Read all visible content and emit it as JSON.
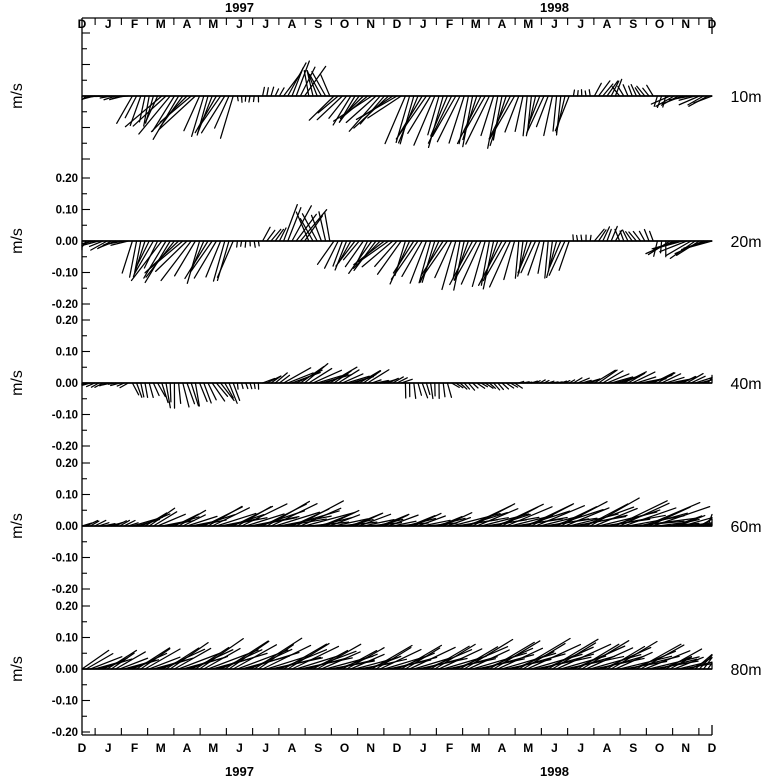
{
  "chart_data": {
    "type": "stick-plot",
    "x_axis": {
      "months": [
        "D",
        "J",
        "F",
        "M",
        "A",
        "M",
        "J",
        "J",
        "A",
        "S",
        "O",
        "N",
        "D",
        "J",
        "F",
        "M",
        "A",
        "M",
        "J",
        "J",
        "A",
        "S",
        "O",
        "N",
        "D"
      ],
      "years": [
        {
          "label": "1997",
          "month_index": 6
        },
        {
          "label": "1998",
          "month_index": 18
        }
      ]
    },
    "units": "m/s",
    "ylim": [
      -0.2,
      0.2
    ],
    "y_ticks": [
      "0.20",
      "0.10",
      "0.00",
      "-0.10",
      "-0.20"
    ],
    "panels": [
      {
        "depth": "10m",
        "show_tick_labels": false,
        "segments": [
          {
            "range": [
              0.0,
              1.9
            ],
            "amp": 0.04,
            "angle": -170
          },
          {
            "range": [
              1.9,
              2.9
            ],
            "amp": 0.1,
            "angle": -110
          },
          {
            "range": [
              2.9,
              4.4
            ],
            "amp": 0.16,
            "angle": -130
          },
          {
            "range": [
              4.4,
              5.9
            ],
            "amp": 0.14,
            "angle": -115
          },
          {
            "range": [
              5.9,
              6.8
            ],
            "amp": 0.02,
            "angle": -90
          },
          {
            "range": [
              6.8,
              7.6
            ],
            "amp": 0.03,
            "angle": 70
          },
          {
            "range": [
              7.6,
              8.5
            ],
            "amp": 0.12,
            "angle": 60
          },
          {
            "range": [
              8.5,
              9.6
            ],
            "amp": 0.09,
            "angle": 110
          },
          {
            "range": [
              9.6,
              11.0
            ],
            "amp": 0.11,
            "angle": -130
          },
          {
            "range": [
              11.0,
              12.2
            ],
            "amp": 0.15,
            "angle": -140
          },
          {
            "range": [
              12.2,
              14.0
            ],
            "amp": 0.17,
            "angle": -115
          },
          {
            "range": [
              14.0,
              16.5
            ],
            "amp": 0.17,
            "angle": -110
          },
          {
            "range": [
              16.5,
              18.6
            ],
            "amp": 0.13,
            "angle": -105
          },
          {
            "range": [
              18.6,
              19.4
            ],
            "amp": 0.02,
            "angle": 90
          },
          {
            "range": [
              19.4,
              20.4
            ],
            "amp": 0.06,
            "angle": 60
          },
          {
            "range": [
              20.4,
              21.8
            ],
            "amp": 0.04,
            "angle": 120
          },
          {
            "range": [
              21.8,
              22.3
            ],
            "amp": 0.04,
            "angle": -100
          },
          {
            "range": [
              22.3,
              24.0
            ],
            "amp": 0.07,
            "angle": -160
          }
        ]
      },
      {
        "depth": "20m",
        "show_tick_labels": true,
        "segments": [
          {
            "range": [
              0.0,
              1.9
            ],
            "amp": 0.06,
            "angle": -160
          },
          {
            "range": [
              1.9,
              2.9
            ],
            "amp": 0.12,
            "angle": -110
          },
          {
            "range": [
              2.9,
              4.4
            ],
            "amp": 0.16,
            "angle": -130
          },
          {
            "range": [
              4.4,
              5.9
            ],
            "amp": 0.14,
            "angle": -115
          },
          {
            "range": [
              5.9,
              6.8
            ],
            "amp": 0.02,
            "angle": -90
          },
          {
            "range": [
              6.8,
              7.6
            ],
            "amp": 0.05,
            "angle": 60
          },
          {
            "range": [
              7.6,
              8.5
            ],
            "amp": 0.13,
            "angle": 60
          },
          {
            "range": [
              8.5,
              9.6
            ],
            "amp": 0.1,
            "angle": 110
          },
          {
            "range": [
              9.6,
              11.0
            ],
            "amp": 0.1,
            "angle": -120
          },
          {
            "range": [
              11.0,
              12.2
            ],
            "amp": 0.13,
            "angle": -135
          },
          {
            "range": [
              12.2,
              14.0
            ],
            "amp": 0.15,
            "angle": -115
          },
          {
            "range": [
              14.0,
              16.5
            ],
            "amp": 0.16,
            "angle": -110
          },
          {
            "range": [
              16.5,
              18.6
            ],
            "amp": 0.12,
            "angle": -105
          },
          {
            "range": [
              18.6,
              19.4
            ],
            "amp": 0.02,
            "angle": 90
          },
          {
            "range": [
              19.4,
              20.4
            ],
            "amp": 0.05,
            "angle": 60
          },
          {
            "range": [
              20.4,
              21.8
            ],
            "amp": 0.04,
            "angle": 120
          },
          {
            "range": [
              21.8,
              22.3
            ],
            "amp": 0.05,
            "angle": -100
          },
          {
            "range": [
              22.3,
              24.0
            ],
            "amp": 0.1,
            "angle": -155
          }
        ]
      },
      {
        "depth": "40m",
        "show_tick_labels": true,
        "segments": [
          {
            "range": [
              0.0,
              1.9
            ],
            "amp": 0.03,
            "angle": -160
          },
          {
            "range": [
              1.9,
              2.9
            ],
            "amp": 0.05,
            "angle": -70
          },
          {
            "range": [
              2.9,
              4.4
            ],
            "amp": 0.08,
            "angle": -80
          },
          {
            "range": [
              4.4,
              5.9
            ],
            "amp": 0.07,
            "angle": -60
          },
          {
            "range": [
              5.9,
              6.8
            ],
            "amp": 0.02,
            "angle": -80
          },
          {
            "range": [
              6.8,
              7.6
            ],
            "amp": 0.05,
            "angle": 30
          },
          {
            "range": [
              7.6,
              8.5
            ],
            "amp": 0.1,
            "angle": 30
          },
          {
            "range": [
              8.5,
              9.6
            ],
            "amp": 0.1,
            "angle": 25
          },
          {
            "range": [
              9.6,
              11.0
            ],
            "amp": 0.08,
            "angle": 25
          },
          {
            "range": [
              11.0,
              12.2
            ],
            "amp": 0.04,
            "angle": 20
          },
          {
            "range": [
              12.2,
              14.0
            ],
            "amp": 0.05,
            "angle": -80
          },
          {
            "range": [
              14.0,
              16.5
            ],
            "amp": 0.03,
            "angle": -40
          },
          {
            "range": [
              16.5,
              18.6
            ],
            "amp": 0.02,
            "angle": 20
          },
          {
            "range": [
              18.6,
              19.4
            ],
            "amp": 0.04,
            "angle": 25
          },
          {
            "range": [
              19.4,
              20.4
            ],
            "amp": 0.08,
            "angle": 25
          },
          {
            "range": [
              20.4,
              21.8
            ],
            "amp": 0.08,
            "angle": 20
          },
          {
            "range": [
              21.8,
              22.3
            ],
            "amp": 0.07,
            "angle": 20
          },
          {
            "range": [
              22.3,
              24.0
            ],
            "amp": 0.06,
            "angle": 20
          }
        ]
      },
      {
        "depth": "60m",
        "show_tick_labels": true,
        "segments": [
          {
            "range": [
              0.0,
              1.9
            ],
            "amp": 0.04,
            "angle": 20
          },
          {
            "range": [
              1.9,
              2.9
            ],
            "amp": 0.1,
            "angle": 25
          },
          {
            "range": [
              2.9,
              4.4
            ],
            "amp": 0.1,
            "angle": 20
          },
          {
            "range": [
              4.4,
              5.9
            ],
            "amp": 0.14,
            "angle": 20
          },
          {
            "range": [
              5.9,
              6.8
            ],
            "amp": 0.16,
            "angle": 20
          },
          {
            "range": [
              6.8,
              7.6
            ],
            "amp": 0.17,
            "angle": 20
          },
          {
            "range": [
              7.6,
              8.5
            ],
            "amp": 0.17,
            "angle": 18
          },
          {
            "range": [
              8.5,
              9.6
            ],
            "amp": 0.12,
            "angle": 15
          },
          {
            "range": [
              9.6,
              11.0
            ],
            "amp": 0.11,
            "angle": 15
          },
          {
            "range": [
              11.0,
              12.2
            ],
            "amp": 0.1,
            "angle": 15
          },
          {
            "range": [
              12.2,
              14.0
            ],
            "amp": 0.1,
            "angle": 15
          },
          {
            "range": [
              14.0,
              16.5
            ],
            "amp": 0.16,
            "angle": 18
          },
          {
            "range": [
              16.5,
              18.6
            ],
            "amp": 0.17,
            "angle": 18
          },
          {
            "range": [
              18.6,
              19.4
            ],
            "amp": 0.18,
            "angle": 20
          },
          {
            "range": [
              19.4,
              20.4
            ],
            "amp": 0.19,
            "angle": 18
          },
          {
            "range": [
              20.4,
              21.8
            ],
            "amp": 0.19,
            "angle": 15
          },
          {
            "range": [
              21.8,
              22.3
            ],
            "amp": 0.12,
            "angle": 12
          },
          {
            "range": [
              22.3,
              24.0
            ],
            "amp": 0.1,
            "angle": 12
          }
        ]
      },
      {
        "depth": "80m",
        "show_tick_labels": true,
        "segments": [
          {
            "range": [
              0.0,
              1.9
            ],
            "amp": 0.11,
            "angle": 25
          },
          {
            "range": [
              1.9,
              2.9
            ],
            "amp": 0.13,
            "angle": 25
          },
          {
            "range": [
              2.9,
              4.4
            ],
            "amp": 0.15,
            "angle": 25
          },
          {
            "range": [
              4.4,
              5.9
            ],
            "amp": 0.17,
            "angle": 25
          },
          {
            "range": [
              5.9,
              6.8
            ],
            "amp": 0.18,
            "angle": 25
          },
          {
            "range": [
              6.8,
              7.6
            ],
            "amp": 0.17,
            "angle": 22
          },
          {
            "range": [
              7.6,
              8.5
            ],
            "amp": 0.17,
            "angle": 22
          },
          {
            "range": [
              8.5,
              9.6
            ],
            "amp": 0.16,
            "angle": 20
          },
          {
            "range": [
              9.6,
              11.0
            ],
            "amp": 0.14,
            "angle": 20
          },
          {
            "range": [
              11.0,
              12.2
            ],
            "amp": 0.15,
            "angle": 22
          },
          {
            "range": [
              12.2,
              14.0
            ],
            "amp": 0.16,
            "angle": 22
          },
          {
            "range": [
              14.0,
              16.5
            ],
            "amp": 0.18,
            "angle": 22
          },
          {
            "range": [
              16.5,
              18.6
            ],
            "amp": 0.19,
            "angle": 22
          },
          {
            "range": [
              18.6,
              19.4
            ],
            "amp": 0.18,
            "angle": 22
          },
          {
            "range": [
              19.4,
              20.4
            ],
            "amp": 0.17,
            "angle": 22
          },
          {
            "range": [
              20.4,
              21.8
            ],
            "amp": 0.17,
            "angle": 20
          },
          {
            "range": [
              21.8,
              22.3
            ],
            "amp": 0.13,
            "angle": 20
          },
          {
            "range": [
              22.3,
              24.0
            ],
            "amp": 0.1,
            "angle": 20
          }
        ]
      }
    ]
  }
}
